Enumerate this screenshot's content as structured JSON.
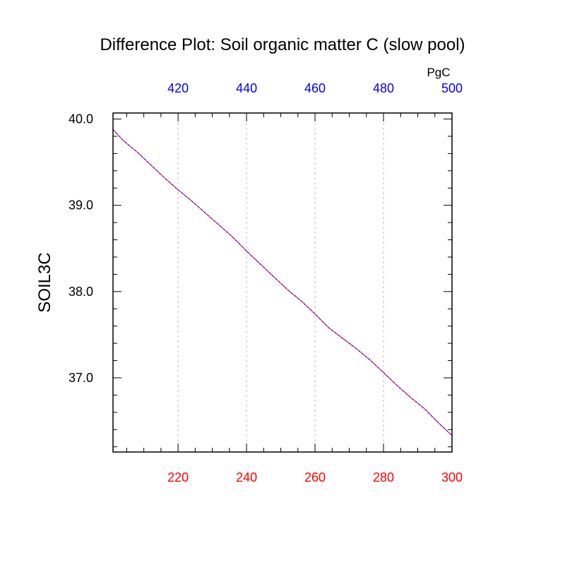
{
  "chart_data": {
    "type": "line",
    "title": "Difference Plot: Soil organic matter C (slow pool)",
    "ylabel": "SOIL3C",
    "top_axis_unit": "PgC",
    "xlim": [
      201,
      300
    ],
    "top_xlim": [
      401,
      500
    ],
    "ylim": [
      36.14,
      40.07
    ],
    "x_ticks": [
      220,
      240,
      260,
      280,
      300
    ],
    "x_tick_labels": [
      "220",
      "240",
      "260",
      "280",
      "300"
    ],
    "top_ticks": [
      420,
      440,
      460,
      480,
      500
    ],
    "top_tick_labels": [
      "420",
      "440",
      "460",
      "480",
      "500"
    ],
    "y_ticks": [
      37.0,
      38.0,
      39.0,
      40.0
    ],
    "y_tick_labels": [
      "37.0",
      "38.0",
      "39.0",
      "40.0"
    ],
    "grid": "vertical dotted at major x ticks",
    "colors": {
      "bottom_axis_labels": "#ff0000",
      "top_axis_labels": "#0000ff",
      "line_primary": "#ff0000",
      "line_secondary": "#0000ff",
      "axes": "#000000",
      "grid": "#bbbbbb"
    },
    "series": [
      {
        "x": [
          201,
          204,
          208,
          212,
          216,
          220,
          224,
          228,
          232,
          236,
          240,
          244,
          248,
          252,
          256,
          260,
          264,
          268,
          272,
          276,
          280,
          284,
          288,
          292,
          296,
          300
        ],
        "values": [
          39.88,
          39.75,
          39.62,
          39.47,
          39.32,
          39.18,
          39.05,
          38.91,
          38.77,
          38.63,
          38.47,
          38.32,
          38.17,
          38.02,
          37.89,
          37.74,
          37.58,
          37.46,
          37.34,
          37.21,
          37.06,
          36.91,
          36.77,
          36.64,
          36.48,
          36.33
        ]
      }
    ]
  }
}
